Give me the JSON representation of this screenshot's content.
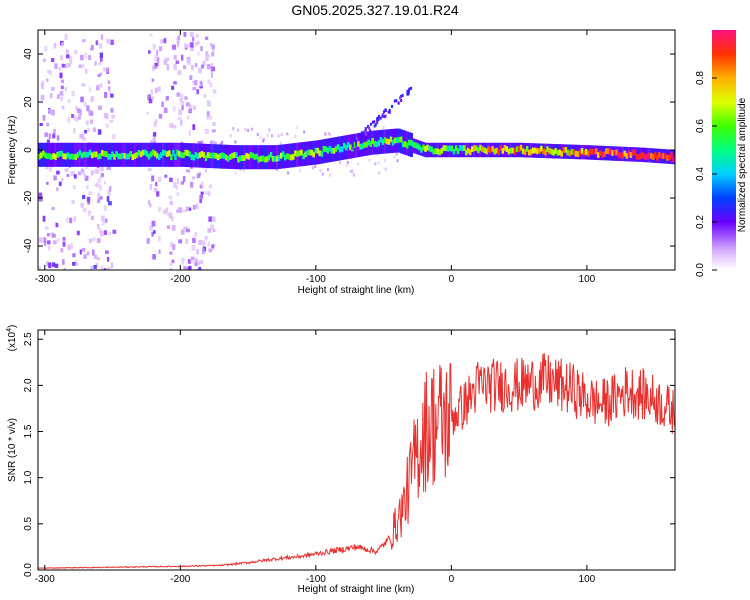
{
  "title": "GN05.2025.327.19.01.R24",
  "chart_data": [
    {
      "type": "heatmap",
      "xlabel": "Height of straight line (km)",
      "ylabel": "Frequency (Hz)",
      "xlim": [
        -305,
        165
      ],
      "ylim": [
        -50,
        50
      ],
      "x_ticks": [
        -300,
        -200,
        -100,
        0,
        100
      ],
      "y_ticks": [
        -40,
        -20,
        0,
        20,
        40
      ],
      "colorbar": {
        "label": "Normalized spectral amplitude",
        "range": [
          0,
          1
        ],
        "ticks": [
          0.0,
          0.2,
          0.4,
          0.6,
          0.8
        ]
      },
      "ridge": {
        "x": [
          -305,
          -250,
          -200,
          -160,
          -130,
          -100,
          -80,
          -60,
          -40,
          -30,
          -20,
          0,
          20,
          50,
          100,
          140,
          165
        ],
        "y": [
          -2,
          -2,
          -2,
          -3,
          -3,
          -1,
          1,
          3,
          4,
          2,
          0,
          0,
          0,
          0,
          -1,
          -2,
          -3
        ]
      },
      "noise_regions": [
        [
          -305,
          -250
        ],
        [
          -225,
          -175
        ]
      ],
      "grid": false
    },
    {
      "type": "line",
      "xlabel": "Height of straight line (km)",
      "ylabel": "SNR (10 * v/v)",
      "y_multiplier": "(x10",
      "y_multiplier_exp": "4",
      "y_multiplier_close": ")",
      "xlim": [
        -305,
        165
      ],
      "ylim": [
        0,
        2.6
      ],
      "x_ticks": [
        -300,
        -200,
        -100,
        0,
        100
      ],
      "y_ticks": [
        "0.0",
        "0.5",
        "1.0",
        "1.5",
        "2.0",
        "2.5"
      ],
      "color": "#e8302e",
      "series": [
        {
          "x": [
            -305,
            -250,
            -200,
            -170,
            -150,
            -130,
            -110,
            -90,
            -70,
            -55,
            -45,
            -35,
            -30,
            -25,
            -20,
            -15,
            -10,
            0,
            10,
            20,
            30,
            50,
            70,
            90,
            100,
            110,
            120,
            130,
            140,
            150,
            165
          ],
          "y": [
            0.02,
            0.03,
            0.04,
            0.05,
            0.08,
            0.12,
            0.15,
            0.2,
            0.25,
            0.2,
            0.35,
            0.7,
            1.0,
            1.3,
            1.5,
            1.6,
            1.6,
            1.65,
            1.8,
            2.0,
            2.0,
            2.0,
            2.05,
            1.95,
            1.85,
            1.8,
            1.85,
            1.95,
            1.9,
            1.85,
            1.7
          ]
        }
      ],
      "grid": false
    }
  ]
}
